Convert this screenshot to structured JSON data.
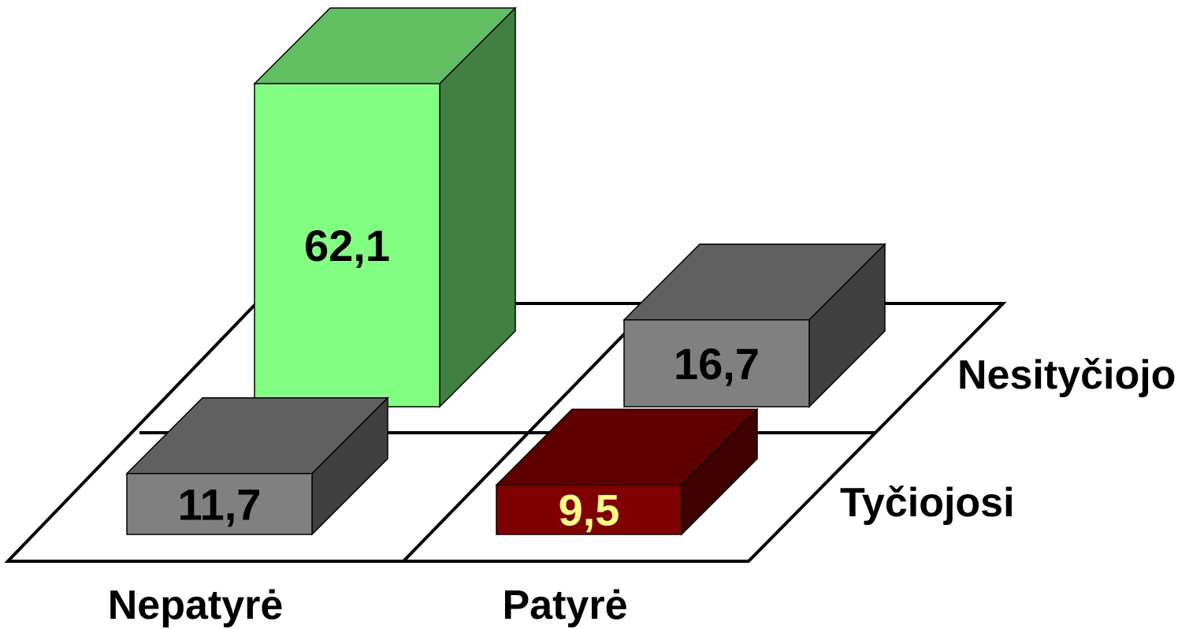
{
  "chart_data": {
    "type": "bar",
    "title": "",
    "categories": [
      "Nepatyrė",
      "Patyrė"
    ],
    "series": [
      {
        "name": "Nesityčiojo",
        "values": [
          62.1,
          16.7
        ],
        "labels": [
          "62,1",
          "16,7"
        ]
      },
      {
        "name": "Tyčiojosi",
        "values": [
          11.7,
          9.5
        ],
        "labels": [
          "11,7",
          "9,5"
        ]
      }
    ],
    "xlabel": "",
    "ylabel": "",
    "grid": false,
    "legend": "none",
    "three_d": true
  },
  "colors": {
    "nepatyre_nesityciojo": "#80ff80",
    "gray_bar": "#808080",
    "patyre_tyciojosi": "#800000",
    "label_dark": "#000000",
    "label_highlight": "#ffff80"
  }
}
